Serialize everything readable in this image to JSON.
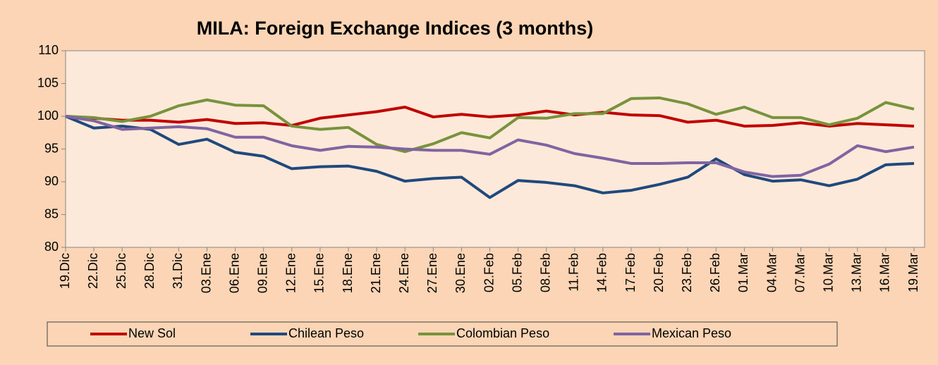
{
  "chart_data": {
    "type": "line",
    "title": "MILA: Foreign Exchange Indices (3 months)",
    "categories": [
      "19.Dic",
      "22.Dic",
      "25.Dic",
      "28.Dic",
      "31.Dic",
      "03.Ene",
      "06.Ene",
      "09.Ene",
      "12.Ene",
      "15.Ene",
      "18.Ene",
      "21.Ene",
      "24.Ene",
      "27.Ene",
      "30.Ene",
      "02.Feb",
      "05.Feb",
      "08.Feb",
      "11.Feb",
      "14.Feb",
      "17.Feb",
      "20.Feb",
      "23.Feb",
      "26.Feb",
      "01.Mar",
      "04.Mar",
      "07.Mar",
      "10.Mar",
      "13.Mar",
      "16.Mar",
      "19.Mar"
    ],
    "series": [
      {
        "name": "New Sol",
        "color": "#c00000",
        "values": [
          100,
          99.7,
          99.4,
          99.4,
          99.1,
          99.5,
          98.9,
          99.0,
          98.6,
          99.7,
          100.2,
          100.7,
          101.4,
          99.9,
          100.3,
          99.9,
          100.2,
          100.8,
          100.2,
          100.6,
          100.2,
          100.1,
          99.1,
          99.4,
          98.5,
          98.6,
          99.0,
          98.5,
          98.9,
          98.7,
          98.5
        ]
      },
      {
        "name": "Chilean Peso",
        "color": "#1f497d",
        "values": [
          100,
          98.2,
          98.5,
          98.0,
          95.7,
          96.5,
          94.5,
          93.9,
          92.0,
          92.3,
          92.4,
          91.6,
          90.1,
          90.5,
          90.7,
          87.6,
          90.2,
          89.9,
          89.4,
          88.3,
          88.7,
          89.6,
          90.7,
          93.5,
          91.1,
          90.1,
          90.3,
          89.4,
          90.4,
          92.6,
          92.8
        ]
      },
      {
        "name": "Colombian Peso",
        "color": "#77933c",
        "values": [
          100,
          99.8,
          99.2,
          100.0,
          101.6,
          102.5,
          101.7,
          101.6,
          98.5,
          98.0,
          98.3,
          95.7,
          94.6,
          95.8,
          97.5,
          96.7,
          99.8,
          99.7,
          100.4,
          100.4,
          102.7,
          102.8,
          101.9,
          100.3,
          101.4,
          99.8,
          99.8,
          98.7,
          99.7,
          102.1,
          101.1
        ]
      },
      {
        "name": "Mexican Peso",
        "color": "#8064a2",
        "values": [
          100,
          99.3,
          98.0,
          98.2,
          98.4,
          98.1,
          96.8,
          96.8,
          95.5,
          94.8,
          95.4,
          95.3,
          95.0,
          94.8,
          94.8,
          94.2,
          96.4,
          95.6,
          94.3,
          93.6,
          92.8,
          92.8,
          92.9,
          92.9,
          91.5,
          90.8,
          91.0,
          92.7,
          95.5,
          94.6,
          95.3
        ]
      }
    ],
    "ylim": [
      80,
      110
    ],
    "yticks": [
      80,
      85,
      90,
      95,
      100,
      105,
      110
    ],
    "grid": false
  }
}
